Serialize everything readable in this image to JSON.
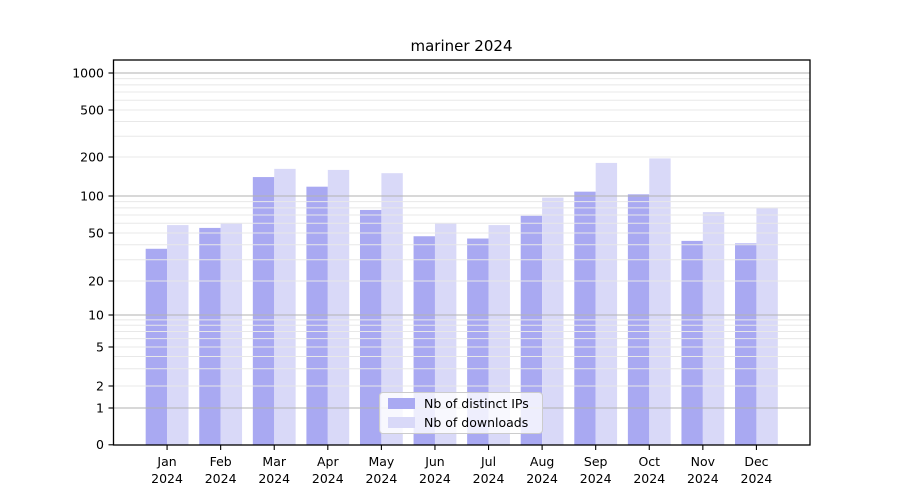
{
  "chart_data": {
    "type": "bar",
    "title": "mariner 2024",
    "categories": [
      "Jan 2024",
      "Feb 2024",
      "Mar 2024",
      "Apr 2024",
      "May 2024",
      "Jun 2024",
      "Jul 2024",
      "Aug 2024",
      "Sep 2024",
      "Oct 2024",
      "Nov 2024",
      "Dec 2024"
    ],
    "series": [
      {
        "name": "Nb of distinct IPs",
        "color": "#a9a9f2",
        "values": [
          37,
          55,
          140,
          118,
          77,
          47,
          45,
          69,
          108,
          103,
          43,
          41
        ]
      },
      {
        "name": "Nb of downloads",
        "color": "#d9d9f8",
        "values": [
          58,
          60,
          162,
          159,
          150,
          60,
          58,
          97,
          180,
          195,
          74,
          80
        ]
      }
    ],
    "yscale": "symlog",
    "ylim": [
      0,
      1200
    ],
    "yticks": [
      0,
      1,
      2,
      5,
      10,
      20,
      50,
      100,
      200,
      500,
      1000
    ],
    "minor_grid_values": [
      2,
      3,
      4,
      5,
      6,
      7,
      8,
      9,
      20,
      30,
      40,
      50,
      60,
      70,
      80,
      90,
      200,
      300,
      400,
      500,
      600,
      700,
      800,
      900
    ],
    "major_grid_values": [
      1,
      10,
      100,
      1000
    ],
    "grid": true,
    "legend_position": "lower center"
  },
  "colors": {
    "grid_major": "#b2b2b2",
    "grid_minor": "#e8e8e8",
    "spine": "#000000",
    "background": "#ffffff",
    "legend_border": "#cccccc",
    "bar_distinct_ips": "#a9a9f2",
    "bar_downloads": "#d9d9f8"
  }
}
